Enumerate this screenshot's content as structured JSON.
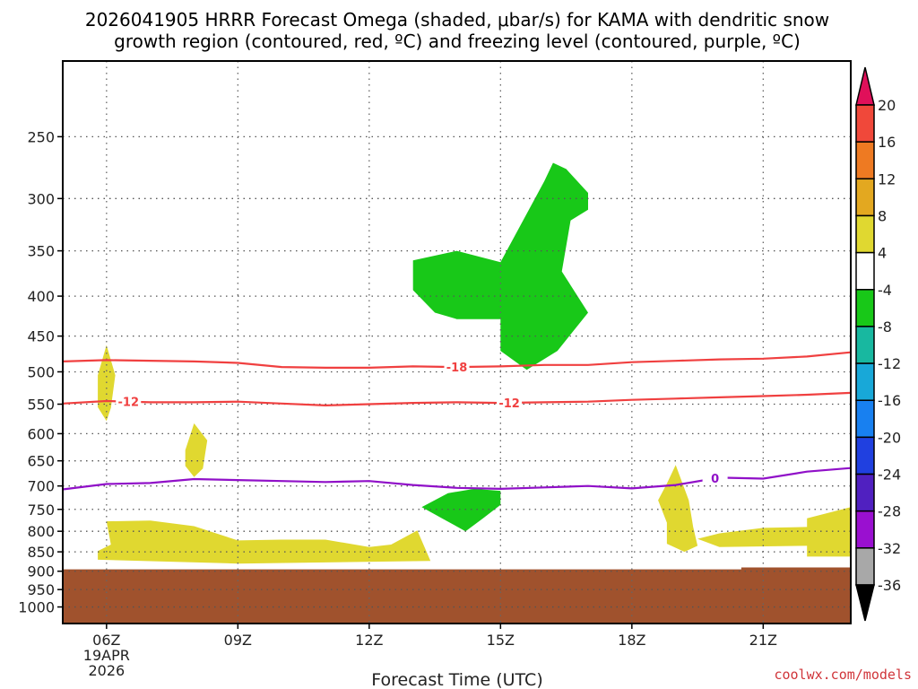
{
  "chart_data": {
    "type": "contour",
    "title_line1": "2026041905 HRRR Forecast Omega (shaded, μbar/s) for KAMA with dendritic snow",
    "title_line2": "growth region (contoured, red, ºC) and freezing level (contoured, purple, ºC)",
    "xlabel": "Forecast Time (UTC)",
    "credit": "coolwx.com/models",
    "x_range": [
      5,
      23
    ],
    "y_range_hPa": [
      200,
      1050
    ],
    "y_scale": "log-pressure",
    "x_ticks": [
      {
        "x": 6,
        "label": "06Z",
        "date1": "19APR",
        "date2": "2026"
      },
      {
        "x": 9,
        "label": "09Z"
      },
      {
        "x": 12,
        "label": "12Z"
      },
      {
        "x": 15,
        "label": "15Z"
      },
      {
        "x": 18,
        "label": "18Z"
      },
      {
        "x": 21,
        "label": "21Z"
      }
    ],
    "y_ticks": [
      250,
      300,
      350,
      400,
      450,
      500,
      550,
      600,
      650,
      700,
      750,
      800,
      850,
      900,
      950,
      1000
    ],
    "grid": true,
    "colorbar": {
      "labels": [
        "20",
        "16",
        "12",
        "8",
        "4",
        "-4",
        "-8",
        "-12",
        "-16",
        "-20",
        "-24",
        "-28",
        "-32",
        "-36"
      ],
      "colors": [
        "#e0105a",
        "#f0483a",
        "#ee7a22",
        "#e3a820",
        "#e0d830",
        "#ffffff",
        "#18c818",
        "#18b8a0",
        "#18a8d8",
        "#1880f0",
        "#2040e0",
        "#5020c0",
        "#9a10d0",
        "#a8a8a8",
        "#000000"
      ]
    },
    "terrain_color": "#a0522d",
    "terrain": [
      [
        5,
        895
      ],
      [
        20.5,
        895
      ],
      [
        20.5,
        890
      ],
      [
        23,
        890
      ]
    ],
    "contours": [
      {
        "label": "-18",
        "color": "#f04040",
        "label_at": 14.0,
        "points": [
          [
            5,
            485
          ],
          [
            6,
            483
          ],
          [
            8,
            485
          ],
          [
            9,
            487
          ],
          [
            10,
            493
          ],
          [
            11,
            494
          ],
          [
            12,
            494
          ],
          [
            13,
            492
          ],
          [
            14,
            493
          ],
          [
            15,
            492
          ],
          [
            16,
            490
          ],
          [
            17,
            490
          ],
          [
            18,
            486
          ],
          [
            19,
            484
          ],
          [
            20,
            482
          ],
          [
            21,
            481
          ],
          [
            22,
            478
          ],
          [
            23,
            472
          ]
        ]
      },
      {
        "label": "-12",
        "color": "#f04040",
        "label_at": [
          6.5,
          15.2
        ],
        "points": [
          [
            5,
            549
          ],
          [
            6,
            545
          ],
          [
            7,
            547
          ],
          [
            8,
            547
          ],
          [
            9,
            546
          ],
          [
            10,
            549
          ],
          [
            11,
            552
          ],
          [
            12,
            550
          ],
          [
            13,
            548
          ],
          [
            14,
            547
          ],
          [
            15,
            548
          ],
          [
            16,
            547
          ],
          [
            17,
            546
          ],
          [
            18,
            543
          ],
          [
            19,
            541
          ],
          [
            20,
            539
          ],
          [
            21,
            537
          ],
          [
            22,
            535
          ],
          [
            23,
            532
          ]
        ]
      },
      {
        "label": "0",
        "color": "#9010c8",
        "label_at": 19.9,
        "points": [
          [
            5,
            707
          ],
          [
            6,
            696
          ],
          [
            7,
            694
          ],
          [
            8,
            686
          ],
          [
            9,
            688
          ],
          [
            10,
            690
          ],
          [
            11,
            692
          ],
          [
            12,
            690
          ],
          [
            13,
            698
          ],
          [
            14,
            704
          ],
          [
            15,
            706
          ],
          [
            16,
            703
          ],
          [
            17,
            700
          ],
          [
            18,
            705
          ],
          [
            19,
            698
          ],
          [
            20,
            683
          ],
          [
            21,
            685
          ],
          [
            22,
            671
          ],
          [
            23,
            664
          ]
        ]
      }
    ],
    "regions": [
      {
        "color": "#e0d830",
        "value": "4 to 8",
        "points": [
          [
            5.8,
            505
          ],
          [
            6.0,
            462
          ],
          [
            6.2,
            505
          ],
          [
            6.1,
            556
          ],
          [
            6.0,
            578
          ],
          [
            5.8,
            555
          ]
        ]
      },
      {
        "color": "#e0d830",
        "value": "4 to 8",
        "points": [
          [
            7.8,
            630
          ],
          [
            8.0,
            582
          ],
          [
            8.3,
            612
          ],
          [
            8.2,
            665
          ],
          [
            8.0,
            682
          ],
          [
            7.8,
            660
          ]
        ]
      },
      {
        "color": "#e0d830",
        "value": "4 to 8",
        "points": [
          [
            6.0,
            777
          ],
          [
            7.0,
            775
          ],
          [
            8.0,
            788
          ],
          [
            9.0,
            822
          ],
          [
            10.0,
            820
          ],
          [
            11.0,
            820
          ],
          [
            12.0,
            838
          ],
          [
            12.5,
            832
          ],
          [
            13.1,
            798
          ],
          [
            13.4,
            873
          ],
          [
            9.0,
            880
          ],
          [
            5.8,
            870
          ],
          [
            5.8,
            848
          ],
          [
            6.1,
            832
          ]
        ]
      },
      {
        "color": "#e0d830",
        "value": "4 to 8",
        "points": [
          [
            18.6,
            730
          ],
          [
            18.8,
            695
          ],
          [
            19.0,
            658
          ],
          [
            19.3,
            730
          ],
          [
            19.4,
            790
          ],
          [
            19.5,
            835
          ],
          [
            19.2,
            850
          ],
          [
            18.8,
            830
          ],
          [
            18.8,
            780
          ]
        ]
      },
      {
        "color": "#e0d830",
        "value": "4 to 8",
        "points": [
          [
            19.5,
            818
          ],
          [
            20.0,
            805
          ],
          [
            21.0,
            792
          ],
          [
            22.0,
            790
          ],
          [
            22.0,
            770
          ],
          [
            23,
            745
          ],
          [
            23,
            862
          ],
          [
            22.0,
            862
          ],
          [
            22.0,
            835
          ],
          [
            20.0,
            838
          ]
        ]
      },
      {
        "color": "#18c818",
        "value": "-8 to -4",
        "points": [
          [
            13.0,
            360
          ],
          [
            14.0,
            350
          ],
          [
            15.0,
            362
          ],
          [
            16.0,
            285
          ],
          [
            16.2,
            270
          ],
          [
            16.5,
            275
          ],
          [
            17.0,
            295
          ],
          [
            17.0,
            310
          ],
          [
            16.6,
            320
          ],
          [
            16.4,
            372
          ],
          [
            17.0,
            420
          ],
          [
            16.3,
            470
          ],
          [
            15.6,
            497
          ],
          [
            15.0,
            470
          ],
          [
            15.0,
            428
          ],
          [
            14.0,
            428
          ],
          [
            13.5,
            420
          ],
          [
            13.0,
            393
          ]
        ]
      },
      {
        "color": "#18c818",
        "value": "-8 to -4",
        "points": [
          [
            13.2,
            745
          ],
          [
            13.8,
            715
          ],
          [
            14.4,
            706
          ],
          [
            15.0,
            710
          ],
          [
            15.0,
            740
          ],
          [
            14.6,
            770
          ],
          [
            14.2,
            800
          ],
          [
            13.7,
            772
          ]
        ]
      }
    ]
  }
}
